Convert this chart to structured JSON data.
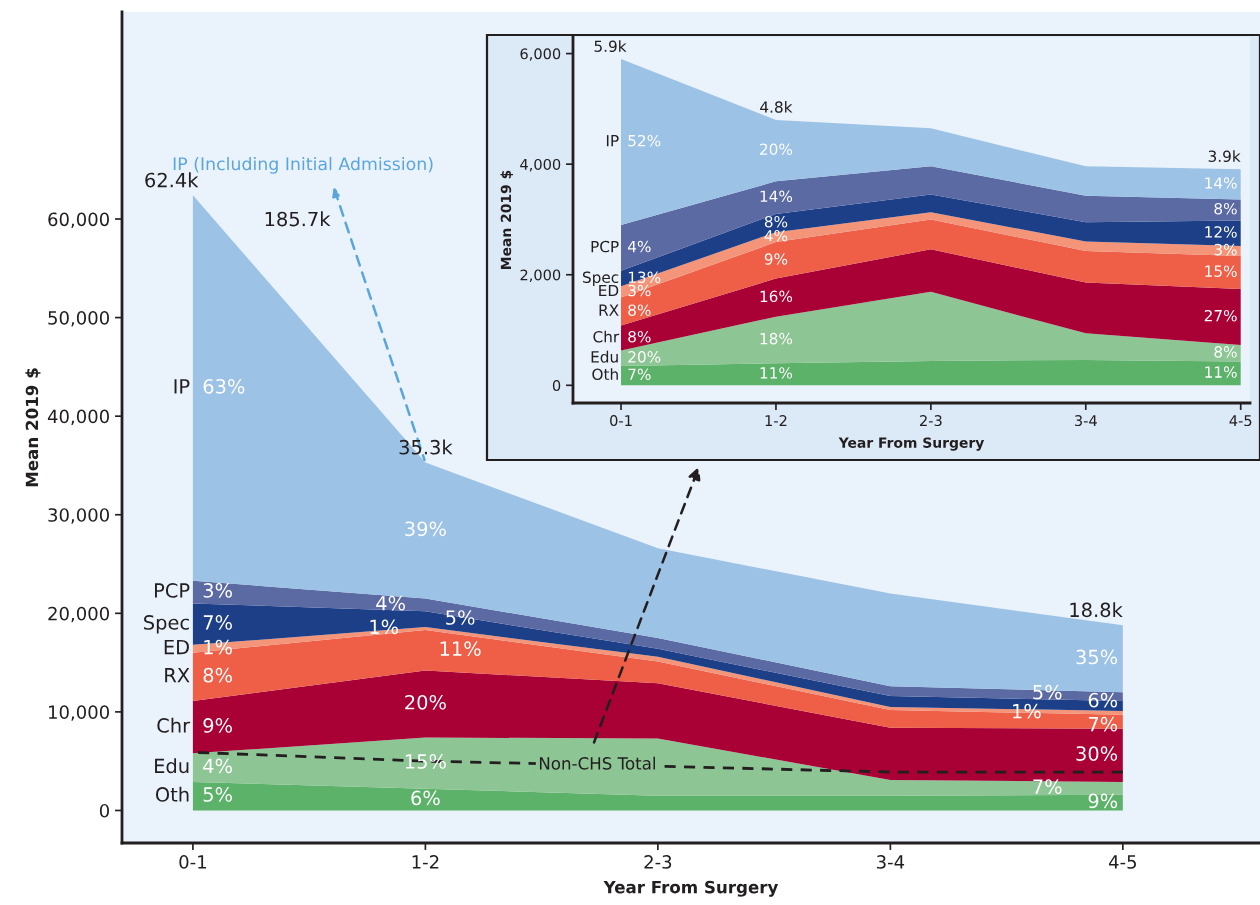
{
  "chart_data": [
    {
      "type": "area",
      "stacked": true,
      "categories": [
        "0-1",
        "1-2",
        "2-3",
        "3-4",
        "4-5"
      ],
      "xlabel": "Year From Surgery",
      "ylabel": "Mean 2019 $",
      "ylim": [
        -3300,
        81000
      ],
      "yticks": [
        0,
        {
          "value": 10000,
          "label": "10,000"
        },
        {
          "value": 20000,
          "label": "20,000"
        },
        {
          "value": 30000,
          "label": "30,000"
        },
        {
          "value": 40000,
          "label": "40,000"
        },
        {
          "value": 50000,
          "label": "50,000"
        },
        {
          "value": 60000,
          "label": "60,000"
        }
      ],
      "series": [
        {
          "name": "Oth",
          "color": "#5db26a",
          "values": [
            2900,
            2200,
            1500,
            1500,
            1600
          ]
        },
        {
          "name": "Edu",
          "color": "#8ec594",
          "values": [
            2900,
            5200,
            5800,
            1600,
            1300
          ]
        },
        {
          "name": "Chr",
          "color": "#a90036",
          "values": [
            5300,
            6800,
            5600,
            5300,
            5400
          ]
        },
        {
          "name": "RX",
          "color": "#ef5e47",
          "values": [
            4900,
            4100,
            2200,
            1800,
            1400
          ]
        },
        {
          "name": "ED",
          "color": "#f4957a",
          "values": [
            800,
            300,
            500,
            300,
            400
          ]
        },
        {
          "name": "Spec",
          "color": "#1c3f87",
          "values": [
            4200,
            1600,
            800,
            1100,
            1000
          ]
        },
        {
          "name": "PCP",
          "color": "#5c6aa3",
          "values": [
            2300,
            1300,
            1100,
            1000,
            900
          ]
        },
        {
          "name": "IP",
          "color": "#9cc2e6",
          "values": [
            39100,
            13800,
            9100,
            9400,
            6800
          ]
        },
        {
          "name": "Non-CHS Total",
          "type": "line",
          "line_style": "dashed",
          "color": "#231f20",
          "values": [
            5900,
            5000,
            4500,
            3900,
            3900
          ]
        }
      ],
      "totals": [
        "62.4k",
        "35.3k",
        null,
        null,
        "18.8k"
      ],
      "annotations": [
        "IP (Including Initial Admission)",
        "185.7k",
        "5%",
        "6%",
        "9%",
        "4%",
        "15%",
        "7%",
        "9%",
        "20%",
        "30%",
        "8%",
        "11%",
        "7%",
        "1%",
        "1%",
        "1%",
        "7%",
        "5%",
        "6%",
        "3%",
        "4%",
        "5%",
        "63%",
        "39%",
        "35%"
      ]
    },
    {
      "type": "area",
      "stacked": true,
      "categories": [
        "0-1",
        "1-2",
        "2-3",
        "3-4",
        "4-5"
      ],
      "xlabel": "Year From Surgery",
      "ylabel": "Mean 2019 $",
      "ylim": [
        -320,
        6300
      ],
      "yticks": [
        0,
        {
          "value": 2000,
          "label": "2,000"
        },
        {
          "value": 4000,
          "label": "4,000"
        },
        {
          "value": 6000,
          "label": "6,000"
        }
      ],
      "series": [
        {
          "name": "Oth",
          "color": "#5db26a",
          "values": [
            350,
            400,
            440,
            460,
            430
          ]
        },
        {
          "name": "Edu",
          "color": "#8ec594",
          "values": [
            280,
            840,
            1250,
            480,
            300
          ]
        },
        {
          "name": "Chr",
          "color": "#a90036",
          "values": [
            450,
            690,
            770,
            920,
            1010
          ]
        },
        {
          "name": "RX",
          "color": "#ef5e47",
          "values": [
            510,
            660,
            540,
            570,
            600
          ]
        },
        {
          "name": "ED",
          "color": "#f4957a",
          "values": [
            200,
            180,
            130,
            170,
            180
          ]
        },
        {
          "name": "Spec",
          "color": "#1c3f87",
          "values": [
            280,
            330,
            320,
            350,
            460
          ]
        },
        {
          "name": "PCP",
          "color": "#5c6aa3",
          "values": [
            830,
            590,
            510,
            480,
            380
          ]
        },
        {
          "name": "IP",
          "color": "#9cc2e6",
          "values": [
            3000,
            1110,
            690,
            530,
            550
          ]
        }
      ],
      "totals": [
        "5.9k",
        "4.8k",
        null,
        null,
        "3.9k"
      ],
      "annotations": [
        "7%",
        "11%",
        "11%",
        "20%",
        "18%",
        "8%",
        "8%",
        "16%",
        "27%",
        "8%",
        "9%",
        "15%",
        "3%",
        "4%",
        "3%",
        "13%",
        "8%",
        "12%",
        "4%",
        "14%",
        "8%",
        "52%",
        "20%",
        "14%"
      ]
    }
  ]
}
